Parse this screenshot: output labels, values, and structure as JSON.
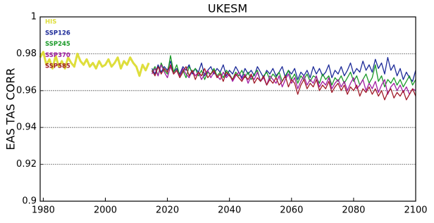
{
  "chart_data": {
    "type": "line",
    "title": "UKESM",
    "y_label": "EAS TAS CORR",
    "xlim": [
      1979,
      2100
    ],
    "xticks": [
      1980,
      2000,
      2020,
      2040,
      2060,
      2080,
      2100
    ],
    "ylim": [
      0.9,
      1
    ],
    "yticks": [
      0.9,
      0.92,
      0.94,
      0.96,
      0.98,
      1
    ],
    "grid": true,
    "legend": "upper-left",
    "series": [
      {
        "name": "HIS",
        "color": "#dede3c",
        "x": [
          1979,
          1980,
          1981,
          1982,
          1983,
          1984,
          1985,
          1986,
          1987,
          1988,
          1989,
          1990,
          1991,
          1992,
          1993,
          1994,
          1995,
          1996,
          1997,
          1998,
          1999,
          2000,
          2001,
          2002,
          2003,
          2004,
          2005,
          2006,
          2007,
          2008,
          2009,
          2010,
          2011,
          2012,
          2013,
          2014
        ],
        "values": [
          0.978,
          0.981,
          0.974,
          0.977,
          0.972,
          0.979,
          0.973,
          0.976,
          0.972,
          0.978,
          0.975,
          0.973,
          0.98,
          0.976,
          0.974,
          0.977,
          0.973,
          0.975,
          0.972,
          0.976,
          0.973,
          0.974,
          0.977,
          0.973,
          0.975,
          0.978,
          0.972,
          0.976,
          0.974,
          0.978,
          0.975,
          0.973,
          0.968,
          0.974,
          0.971,
          0.975
        ]
      },
      {
        "name": "SSP126",
        "color": "#1c2a98",
        "x": [
          2015,
          2016,
          2017,
          2018,
          2019,
          2020,
          2021,
          2022,
          2023,
          2024,
          2025,
          2026,
          2027,
          2028,
          2029,
          2030,
          2031,
          2032,
          2033,
          2034,
          2035,
          2036,
          2037,
          2038,
          2039,
          2040,
          2041,
          2042,
          2043,
          2044,
          2045,
          2046,
          2047,
          2048,
          2049,
          2050,
          2051,
          2052,
          2053,
          2054,
          2055,
          2056,
          2057,
          2058,
          2059,
          2060,
          2061,
          2062,
          2063,
          2064,
          2065,
          2066,
          2067,
          2068,
          2069,
          2070,
          2071,
          2072,
          2073,
          2074,
          2075,
          2076,
          2077,
          2078,
          2079,
          2080,
          2081,
          2082,
          2083,
          2084,
          2085,
          2086,
          2087,
          2088,
          2089,
          2090,
          2091,
          2092,
          2093,
          2094,
          2095,
          2096,
          2097,
          2098,
          2099,
          2100
        ],
        "values": [
          0.972,
          0.969,
          0.974,
          0.97,
          0.973,
          0.971,
          0.976,
          0.97,
          0.972,
          0.969,
          0.973,
          0.971,
          0.974,
          0.969,
          0.972,
          0.97,
          0.975,
          0.968,
          0.971,
          0.973,
          0.969,
          0.972,
          0.97,
          0.974,
          0.968,
          0.971,
          0.969,
          0.973,
          0.97,
          0.967,
          0.972,
          0.969,
          0.971,
          0.968,
          0.973,
          0.97,
          0.967,
          0.971,
          0.969,
          0.972,
          0.968,
          0.97,
          0.973,
          0.967,
          0.971,
          0.969,
          0.972,
          0.966,
          0.97,
          0.968,
          0.971,
          0.967,
          0.973,
          0.969,
          0.972,
          0.968,
          0.97,
          0.974,
          0.967,
          0.971,
          0.969,
          0.973,
          0.968,
          0.971,
          0.975,
          0.969,
          0.972,
          0.97,
          0.976,
          0.971,
          0.974,
          0.97,
          0.977,
          0.972,
          0.975,
          0.969,
          0.978,
          0.971,
          0.974,
          0.968,
          0.972,
          0.966,
          0.97,
          0.967,
          0.965,
          0.971
        ]
      },
      {
        "name": "SSP245",
        "color": "#1a9a28",
        "x": [
          2015,
          2016,
          2017,
          2018,
          2019,
          2020,
          2021,
          2022,
          2023,
          2024,
          2025,
          2026,
          2027,
          2028,
          2029,
          2030,
          2031,
          2032,
          2033,
          2034,
          2035,
          2036,
          2037,
          2038,
          2039,
          2040,
          2041,
          2042,
          2043,
          2044,
          2045,
          2046,
          2047,
          2048,
          2049,
          2050,
          2051,
          2052,
          2053,
          2054,
          2055,
          2056,
          2057,
          2058,
          2059,
          2060,
          2061,
          2062,
          2063,
          2064,
          2065,
          2066,
          2067,
          2068,
          2069,
          2070,
          2071,
          2072,
          2073,
          2074,
          2075,
          2076,
          2077,
          2078,
          2079,
          2080,
          2081,
          2082,
          2083,
          2084,
          2085,
          2086,
          2087,
          2088,
          2089,
          2090,
          2091,
          2092,
          2093,
          2094,
          2095,
          2096,
          2097,
          2098,
          2099,
          2100
        ],
        "values": [
          0.97,
          0.973,
          0.968,
          0.975,
          0.971,
          0.969,
          0.979,
          0.97,
          0.974,
          0.968,
          0.971,
          0.967,
          0.973,
          0.97,
          0.972,
          0.968,
          0.971,
          0.966,
          0.97,
          0.969,
          0.972,
          0.968,
          0.97,
          0.967,
          0.971,
          0.969,
          0.966,
          0.97,
          0.968,
          0.971,
          0.967,
          0.97,
          0.966,
          0.969,
          0.971,
          0.965,
          0.968,
          0.97,
          0.966,
          0.969,
          0.967,
          0.97,
          0.965,
          0.968,
          0.971,
          0.966,
          0.969,
          0.964,
          0.968,
          0.966,
          0.969,
          0.965,
          0.968,
          0.967,
          0.964,
          0.969,
          0.966,
          0.968,
          0.963,
          0.967,
          0.965,
          0.968,
          0.964,
          0.967,
          0.97,
          0.965,
          0.968,
          0.963,
          0.966,
          0.969,
          0.964,
          0.967,
          0.974,
          0.965,
          0.968,
          0.962,
          0.966,
          0.964,
          0.967,
          0.963,
          0.966,
          0.962,
          0.965,
          0.968,
          0.963,
          0.966
        ]
      },
      {
        "name": "SSP370",
        "color": "#a21ca2",
        "x": [
          2015,
          2016,
          2017,
          2018,
          2019,
          2020,
          2021,
          2022,
          2023,
          2024,
          2025,
          2026,
          2027,
          2028,
          2029,
          2030,
          2031,
          2032,
          2033,
          2034,
          2035,
          2036,
          2037,
          2038,
          2039,
          2040,
          2041,
          2042,
          2043,
          2044,
          2045,
          2046,
          2047,
          2048,
          2049,
          2050,
          2051,
          2052,
          2053,
          2054,
          2055,
          2056,
          2057,
          2058,
          2059,
          2060,
          2061,
          2062,
          2063,
          2064,
          2065,
          2066,
          2067,
          2068,
          2069,
          2070,
          2071,
          2072,
          2073,
          2074,
          2075,
          2076,
          2077,
          2078,
          2079,
          2080,
          2081,
          2082,
          2083,
          2084,
          2085,
          2086,
          2087,
          2088,
          2089,
          2090,
          2091,
          2092,
          2093,
          2094,
          2095,
          2096,
          2097,
          2098,
          2099,
          2100
        ],
        "values": [
          0.969,
          0.972,
          0.968,
          0.974,
          0.97,
          0.967,
          0.973,
          0.969,
          0.971,
          0.968,
          0.972,
          0.969,
          0.967,
          0.971,
          0.968,
          0.97,
          0.966,
          0.969,
          0.971,
          0.967,
          0.97,
          0.968,
          0.966,
          0.97,
          0.967,
          0.969,
          0.965,
          0.968,
          0.97,
          0.966,
          0.969,
          0.964,
          0.968,
          0.966,
          0.97,
          0.965,
          0.967,
          0.963,
          0.968,
          0.966,
          0.964,
          0.968,
          0.962,
          0.966,
          0.969,
          0.964,
          0.967,
          0.961,
          0.965,
          0.968,
          0.963,
          0.966,
          0.964,
          0.968,
          0.962,
          0.965,
          0.963,
          0.967,
          0.961,
          0.964,
          0.966,
          0.962,
          0.965,
          0.96,
          0.964,
          0.967,
          0.961,
          0.963,
          0.966,
          0.96,
          0.964,
          0.961,
          0.965,
          0.959,
          0.963,
          0.966,
          0.958,
          0.962,
          0.964,
          0.96,
          0.963,
          0.959,
          0.962,
          0.958,
          0.961,
          0.96
        ]
      },
      {
        "name": "SSP585",
        "color": "#a01a28",
        "x": [
          2015,
          2016,
          2017,
          2018,
          2019,
          2020,
          2021,
          2022,
          2023,
          2024,
          2025,
          2026,
          2027,
          2028,
          2029,
          2030,
          2031,
          2032,
          2033,
          2034,
          2035,
          2036,
          2037,
          2038,
          2039,
          2040,
          2041,
          2042,
          2043,
          2044,
          2045,
          2046,
          2047,
          2048,
          2049,
          2050,
          2051,
          2052,
          2053,
          2054,
          2055,
          2056,
          2057,
          2058,
          2059,
          2060,
          2061,
          2062,
          2063,
          2064,
          2065,
          2066,
          2067,
          2068,
          2069,
          2070,
          2071,
          2072,
          2073,
          2074,
          2075,
          2076,
          2077,
          2078,
          2079,
          2080,
          2081,
          2082,
          2083,
          2084,
          2085,
          2086,
          2087,
          2088,
          2089,
          2090,
          2091,
          2092,
          2093,
          2094,
          2095,
          2096,
          2097,
          2098,
          2099,
          2100
        ],
        "values": [
          0.971,
          0.968,
          0.973,
          0.969,
          0.972,
          0.97,
          0.974,
          0.969,
          0.971,
          0.967,
          0.97,
          0.973,
          0.968,
          0.971,
          0.966,
          0.97,
          0.968,
          0.972,
          0.967,
          0.969,
          0.971,
          0.967,
          0.969,
          0.965,
          0.97,
          0.968,
          0.966,
          0.969,
          0.967,
          0.965,
          0.968,
          0.966,
          0.969,
          0.964,
          0.967,
          0.965,
          0.968,
          0.963,
          0.966,
          0.964,
          0.967,
          0.963,
          0.965,
          0.968,
          0.962,
          0.966,
          0.964,
          0.958,
          0.963,
          0.966,
          0.961,
          0.964,
          0.962,
          0.966,
          0.96,
          0.963,
          0.961,
          0.965,
          0.959,
          0.962,
          0.964,
          0.96,
          0.963,
          0.958,
          0.962,
          0.96,
          0.963,
          0.957,
          0.961,
          0.959,
          0.962,
          0.958,
          0.961,
          0.957,
          0.96,
          0.955,
          0.959,
          0.961,
          0.956,
          0.959,
          0.957,
          0.96,
          0.955,
          0.958,
          0.961,
          0.957
        ]
      }
    ]
  }
}
